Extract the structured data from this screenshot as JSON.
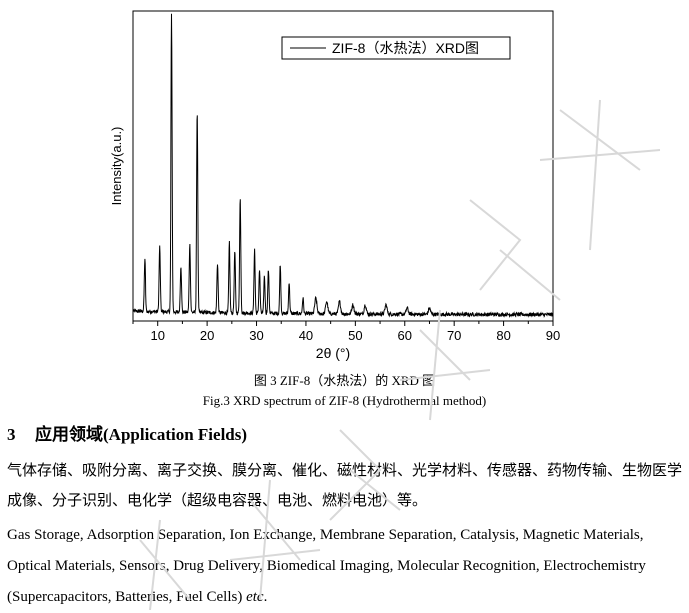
{
  "chart_data": {
    "type": "line",
    "xlabel": "2θ (°)",
    "ylabel": "Intensity(a.u.)",
    "xlim": [
      5,
      90
    ],
    "xticks": [
      10,
      20,
      30,
      40,
      50,
      60,
      70,
      80,
      90
    ],
    "ylim": [
      0,
      1
    ],
    "y_ticks_labeled": false,
    "legend_position": "top-right",
    "series": [
      {
        "name": "ZIF-8（水热法）XRD图",
        "color": "#000000",
        "baseline": 0.02,
        "peaks": [
          {
            "x": 7.4,
            "y": 0.19
          },
          {
            "x": 10.4,
            "y": 0.23
          },
          {
            "x": 12.8,
            "y": 0.98
          },
          {
            "x": 14.7,
            "y": 0.17
          },
          {
            "x": 16.5,
            "y": 0.24
          },
          {
            "x": 18.0,
            "y": 0.67
          },
          {
            "x": 22.1,
            "y": 0.18
          },
          {
            "x": 24.5,
            "y": 0.25
          },
          {
            "x": 25.6,
            "y": 0.22
          },
          {
            "x": 26.7,
            "y": 0.39
          },
          {
            "x": 29.6,
            "y": 0.23
          },
          {
            "x": 30.6,
            "y": 0.16
          },
          {
            "x": 31.6,
            "y": 0.14
          },
          {
            "x": 32.4,
            "y": 0.16
          },
          {
            "x": 34.8,
            "y": 0.18
          },
          {
            "x": 36.6,
            "y": 0.12
          },
          {
            "x": 39.4,
            "y": 0.07
          },
          {
            "x": 42.0,
            "y": 0.07
          },
          {
            "x": 44.2,
            "y": 0.06
          },
          {
            "x": 46.8,
            "y": 0.06
          },
          {
            "x": 49.5,
            "y": 0.05
          },
          {
            "x": 52.0,
            "y": 0.05
          },
          {
            "x": 56.2,
            "y": 0.05
          },
          {
            "x": 60.5,
            "y": 0.04
          },
          {
            "x": 65.0,
            "y": 0.04
          }
        ]
      }
    ]
  },
  "caption_cn": "图 3 ZIF-8（水热法）的 XRD 图",
  "caption_en": "Fig.3 XRD spectrum of ZIF-8 (Hydrothermal method)",
  "section": {
    "number": "3",
    "title": "应用领域(Application Fields)",
    "paragraph_cn": "气体存储、吸附分离、离子交换、膜分离、催化、磁性材料、光学材料、传感器、药物传输、生物医学成像、分子识别、电化学（超级电容器、电池、燃料电池）等。",
    "paragraph_en": "Gas Storage, Adsorption Separation, Ion Exchange, Membrane Separation, Catalysis, Magnetic Materials, Optical Materials, Sensors, Drug Delivery, Biomedical Imaging, Molecular Recognition, Electrochemistry (Supercapacitors, Batteries, Fuel Cells)",
    "etc": "etc"
  }
}
